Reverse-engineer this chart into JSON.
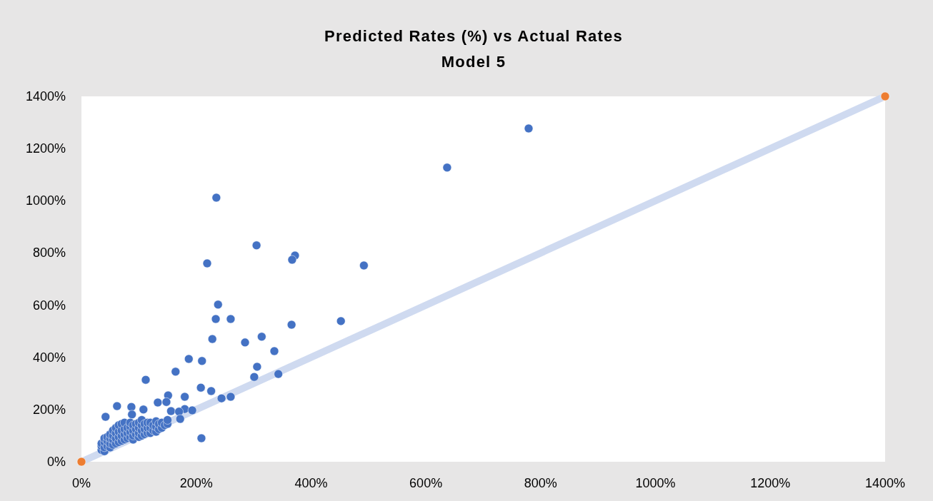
{
  "chart_data": {
    "type": "scatter",
    "title": "Predicted Rates (%) vs Actual Rates",
    "subtitle": "Model 5",
    "xlim": [
      0,
      1400
    ],
    "ylim": [
      0,
      1400
    ],
    "xticks": [
      {
        "value": 0,
        "label": "0%"
      },
      {
        "value": 200,
        "label": "200%"
      },
      {
        "value": 400,
        "label": "400%"
      },
      {
        "value": 600,
        "label": "600%"
      },
      {
        "value": 800,
        "label": "800%"
      },
      {
        "value": 1000,
        "label": "1000%"
      },
      {
        "value": 1200,
        "label": "1200%"
      },
      {
        "value": 1400,
        "label": "1400%"
      }
    ],
    "yticks": [
      {
        "value": 0,
        "label": "0%"
      },
      {
        "value": 200,
        "label": "200%"
      },
      {
        "value": 400,
        "label": "400%"
      },
      {
        "value": 600,
        "label": "600%"
      },
      {
        "value": 800,
        "label": "800%"
      },
      {
        "value": 1000,
        "label": "1000%"
      },
      {
        "value": 1200,
        "label": "1200%"
      },
      {
        "value": 1400,
        "label": "1400%"
      }
    ],
    "grid": false,
    "series": [
      {
        "type": "line",
        "color": "#cfdaf0",
        "x": [
          0,
          1400
        ],
        "values": [
          0,
          1400
        ]
      },
      {
        "color": "#4472c4",
        "marker": "circle",
        "x": [
          779,
          637,
          235,
          219,
          305,
          372,
          367,
          492,
          238,
          234,
          260,
          366,
          452,
          228,
          285,
          314,
          336,
          187,
          210,
          164,
          112,
          306,
          301,
          343,
          208,
          226,
          244,
          260,
          151,
          180,
          133,
          148,
          62,
          42,
          87,
          108,
          156,
          180,
          193,
          170,
          172,
          209,
          88,
          35,
          35,
          35,
          40,
          40,
          40,
          40,
          45,
          45,
          45,
          50,
          50,
          50,
          50,
          55,
          55,
          55,
          55,
          60,
          60,
          60,
          60,
          65,
          65,
          65,
          65,
          70,
          70,
          70,
          70,
          75,
          75,
          75,
          75,
          80,
          80,
          80,
          85,
          85,
          85,
          85,
          90,
          90,
          90,
          90,
          95,
          95,
          95,
          100,
          100,
          100,
          100,
          105,
          105,
          105,
          105,
          110,
          110,
          110,
          115,
          115,
          115,
          120,
          120,
          120,
          125,
          125,
          130,
          130,
          130,
          135,
          135,
          140,
          140,
          145,
          150,
          150
        ],
        "values": [
          1277,
          1127,
          1012,
          760,
          829,
          790,
          774,
          752,
          602,
          547,
          547,
          525,
          539,
          470,
          457,
          479,
          424,
          394,
          386,
          345,
          314,
          364,
          325,
          336,
          284,
          271,
          243,
          249,
          254,
          249,
          227,
          229,
          213,
          172,
          210,
          200,
          194,
          202,
          197,
          192,
          164,
          90,
          181,
          45,
          60,
          70,
          40,
          55,
          75,
          90,
          60,
          80,
          95,
          55,
          70,
          90,
          105,
          65,
          85,
          100,
          120,
          70,
          90,
          110,
          130,
          75,
          95,
          115,
          140,
          80,
          100,
          120,
          145,
          85,
          105,
          125,
          150,
          90,
          110,
          130,
          95,
          115,
          135,
          150,
          85,
          100,
          120,
          140,
          105,
          125,
          145,
          95,
          110,
          130,
          150,
          100,
          120,
          140,
          160,
          105,
          125,
          145,
          110,
          130,
          150,
          110,
          130,
          150,
          120,
          140,
          115,
          135,
          155,
          125,
          145,
          130,
          150,
          140,
          145,
          160
        ]
      },
      {
        "color": "#ed7d31",
        "marker": "circle",
        "x": [
          0,
          1400
        ],
        "values": [
          0,
          1400
        ]
      }
    ]
  }
}
